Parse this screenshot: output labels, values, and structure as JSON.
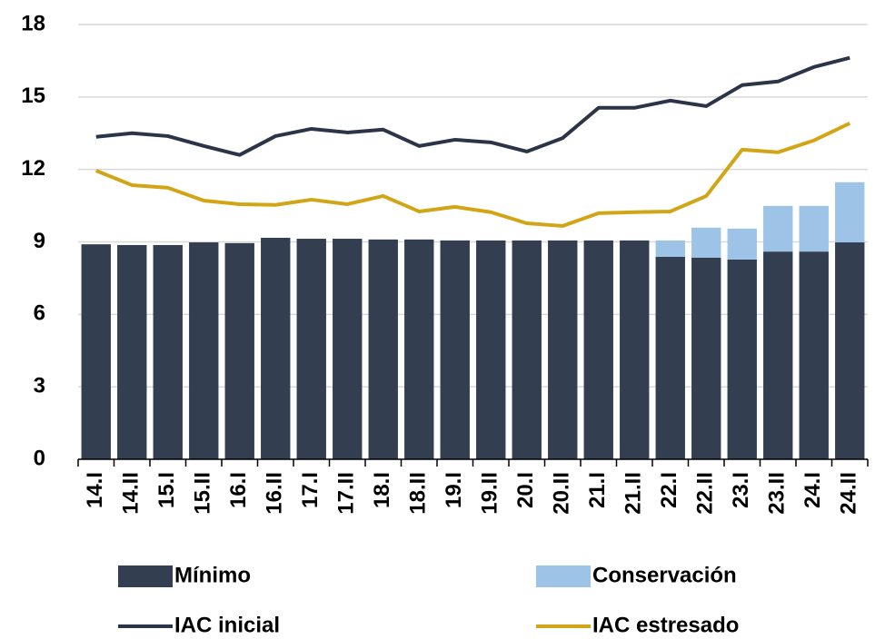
{
  "chart_data": {
    "type": "bar-line",
    "categories": [
      "14.I",
      "14.II",
      "15.I",
      "15.II",
      "16.I",
      "16.II",
      "17.I",
      "17.II",
      "18.I",
      "18.II",
      "19.I",
      "19.II",
      "20.I",
      "20.II",
      "21.I",
      "21.II",
      "22.I",
      "22.II",
      "23.I",
      "23.II",
      "24.I",
      "24.II"
    ],
    "series": [
      {
        "name": "Mínimo",
        "type": "bar",
        "color": "#333f50",
        "values": [
          8.9,
          8.87,
          8.87,
          8.98,
          8.95,
          9.17,
          9.13,
          9.13,
          9.1,
          9.1,
          9.06,
          9.06,
          9.06,
          9.06,
          9.06,
          9.06,
          8.38,
          8.35,
          8.27,
          8.6,
          8.6,
          8.98
        ]
      },
      {
        "name": "Conservación",
        "type": "bar",
        "color": "#9dc3e6",
        "values": [
          0,
          0,
          0,
          0,
          0,
          0,
          0,
          0,
          0,
          0,
          0,
          0,
          0,
          0,
          0,
          0,
          0.68,
          1.24,
          1.28,
          1.89,
          1.89,
          2.49
        ]
      },
      {
        "name": "IAC inicial",
        "type": "line",
        "color": "#2b3547",
        "values": [
          13.35,
          13.5,
          13.38,
          12.97,
          12.6,
          13.38,
          13.68,
          13.53,
          13.65,
          12.97,
          13.23,
          13.12,
          12.74,
          13.3,
          14.55,
          14.55,
          14.85,
          14.62,
          15.49,
          15.64,
          16.24,
          16.62
        ]
      },
      {
        "name": "IAC estresado",
        "type": "line",
        "color": "#d1a516",
        "values": [
          11.95,
          11.35,
          11.24,
          10.71,
          10.56,
          10.53,
          10.75,
          10.56,
          10.9,
          10.26,
          10.45,
          10.23,
          9.77,
          9.66,
          10.19,
          10.23,
          10.26,
          10.9,
          12.82,
          12.71,
          13.2,
          13.91
        ]
      }
    ],
    "ylim": [
      0,
      18
    ],
    "yticks": [
      0,
      3,
      6,
      9,
      12,
      15,
      18
    ],
    "grid": true,
    "stacked": true
  }
}
